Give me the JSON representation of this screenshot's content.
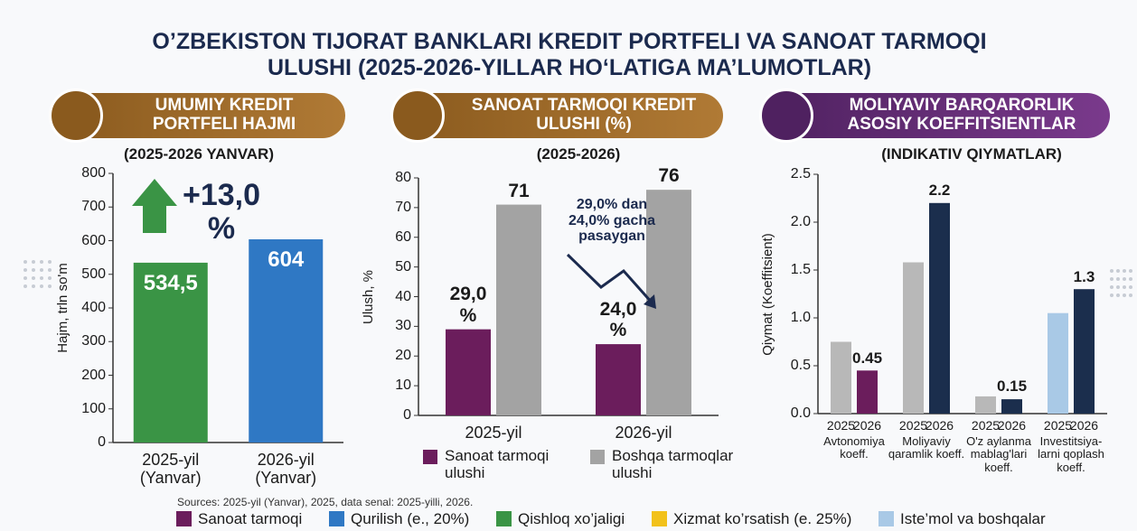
{
  "title": "O’ZBEKISTON TIJORAT BANKLARI KREDIT PORTFELI VA SANOAT TARMOQI ULUSHI (2025-2026-YILLAR HO‘LATIGA MA’LUMOTLAR)",
  "chart_data": [
    {
      "type": "bar",
      "title": "UMUMIY KREDIT PORTFELI HAJMI",
      "subtitle": "(2025-2026 YANVAR)",
      "y_label": "Hajm, trln so'm",
      "annotation": "+13,0 %",
      "categories": [
        "2025-yil (Yanvar)",
        "2026-yil (Yanvar)"
      ],
      "values": [
        534.5,
        604
      ],
      "value_labels": [
        "534,5",
        "604"
      ],
      "colors": [
        "#3a9445",
        "#2f78c4"
      ],
      "ylim": [
        0,
        800
      ],
      "yticks": [
        0,
        100,
        200,
        300,
        400,
        500,
        600,
        700,
        800
      ]
    },
    {
      "type": "bar",
      "title": "SANOAT TARMOQI KREDIT ULUSHI (%)",
      "subtitle": "(2025-2026)",
      "y_label": "Ulush, %",
      "annotation": "29,0% dan 24,0% gacha pasaygan",
      "categories": [
        "2025-yil",
        "2026-yil"
      ],
      "series": [
        {
          "name": "Sanoat tarmoqi ulushi",
          "color": "#6b1d5c",
          "values": [
            29,
            24
          ],
          "value_labels": [
            "29,0 %",
            "24,0 %"
          ]
        },
        {
          "name": "Boshqa tarmoqlar ulushi",
          "color": "#a3a3a3",
          "values": [
            71,
            76
          ]
        }
      ],
      "ylim": [
        0,
        80
      ],
      "yticks": [
        0,
        10,
        20,
        30,
        40,
        50,
        60,
        70,
        80
      ]
    },
    {
      "type": "bar",
      "title": "MOLIYAVIY BARQARORLIK ASOSIY KOEFFITSIENTLAR",
      "subtitle": "(INDIKATIV QIYMATLAR)",
      "y_label": "Qiymat (Koeffitsient)",
      "categories": [
        "Avtonomiya koeff.",
        "Moliyaviy qaramlik koeff.",
        "O'z aylanma mablag'lari koeff.",
        "Investitsiya-larni qoplash koeff."
      ],
      "series": [
        {
          "name": "2025",
          "colors": [
            "#b8b8b8",
            "#b8b8b8",
            "#b8b8b8",
            "#a9c9e6"
          ],
          "values": [
            0.75,
            1.58,
            0.18,
            1.05
          ]
        },
        {
          "name": "2026",
          "colors": [
            "#6b1d5c",
            "#1b2e4d",
            "#1b2e4d",
            "#1b2e4d"
          ],
          "values": [
            0.45,
            2.2,
            0.15,
            1.3
          ]
        }
      ],
      "ylim": [
        0,
        2.5
      ],
      "yticks": [
        {
          "value": 0,
          "label": "0.0"
        },
        0.5,
        {
          "value": 1,
          "label": "1.0"
        },
        1.5,
        {
          "value": 2,
          "label": "2.0"
        },
        2.5
      ]
    }
  ],
  "footer": {
    "source": "Sources: 2025-yil (Yanvar), 2025, data senal: 2025-yilli, 2026.",
    "legend": [
      {
        "label": "Sanoat tarmoqi",
        "color": "#6b1d5c"
      },
      {
        "label": "Qurilish (e., 20%)",
        "color": "#2f78c4"
      },
      {
        "label": "Qishloq xo’jaligi",
        "color": "#3a9445"
      },
      {
        "label": "Xizmat ko’rsatish (e. 25%)",
        "color": "#f2c21b"
      },
      {
        "label": "Iste’mol va boshqalar",
        "color": "#a9c9e6"
      }
    ]
  }
}
